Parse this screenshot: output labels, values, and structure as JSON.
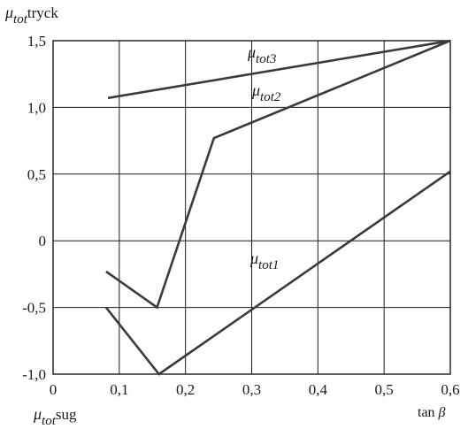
{
  "chart_data": {
    "type": "line",
    "x_ticks": [
      "0",
      "0,1",
      "0,2",
      "0,3",
      "0,4",
      "0,5",
      "0,6"
    ],
    "y_ticks": [
      "-1,0",
      "-0,5",
      "0",
      "0,5",
      "1,0",
      "1,5"
    ],
    "xlim": [
      0,
      0.6
    ],
    "ylim": [
      -1.0,
      1.5
    ],
    "grid": true,
    "top_label": {
      "sym": "μ",
      "sub": "tot",
      "word": "tryck"
    },
    "bottom_label": {
      "sym": "μ",
      "sub": "tot",
      "word": "sug"
    },
    "x_label": "tan β",
    "series": [
      {
        "name": "μtot1",
        "label": {
          "sym": "μ",
          "sub": "tot1"
        },
        "points": [
          [
            0.08,
            -0.5
          ],
          [
            0.16,
            -1.0
          ],
          [
            0.6,
            0.52
          ]
        ]
      },
      {
        "name": "μtot2",
        "label": {
          "sym": "μ",
          "sub": "tot2"
        },
        "points": [
          [
            0.08,
            -0.23
          ],
          [
            0.157,
            -0.5
          ],
          [
            0.243,
            0.77
          ],
          [
            0.6,
            1.5
          ]
        ]
      },
      {
        "name": "μtot3",
        "label": {
          "sym": "μ",
          "sub": "tot3"
        },
        "points": [
          [
            0.083,
            1.07
          ],
          [
            0.6,
            1.5
          ]
        ]
      }
    ],
    "colors": {
      "line": "#3a3a3a",
      "grid": "#1a1a1a",
      "text": "#1a1a1a"
    }
  }
}
